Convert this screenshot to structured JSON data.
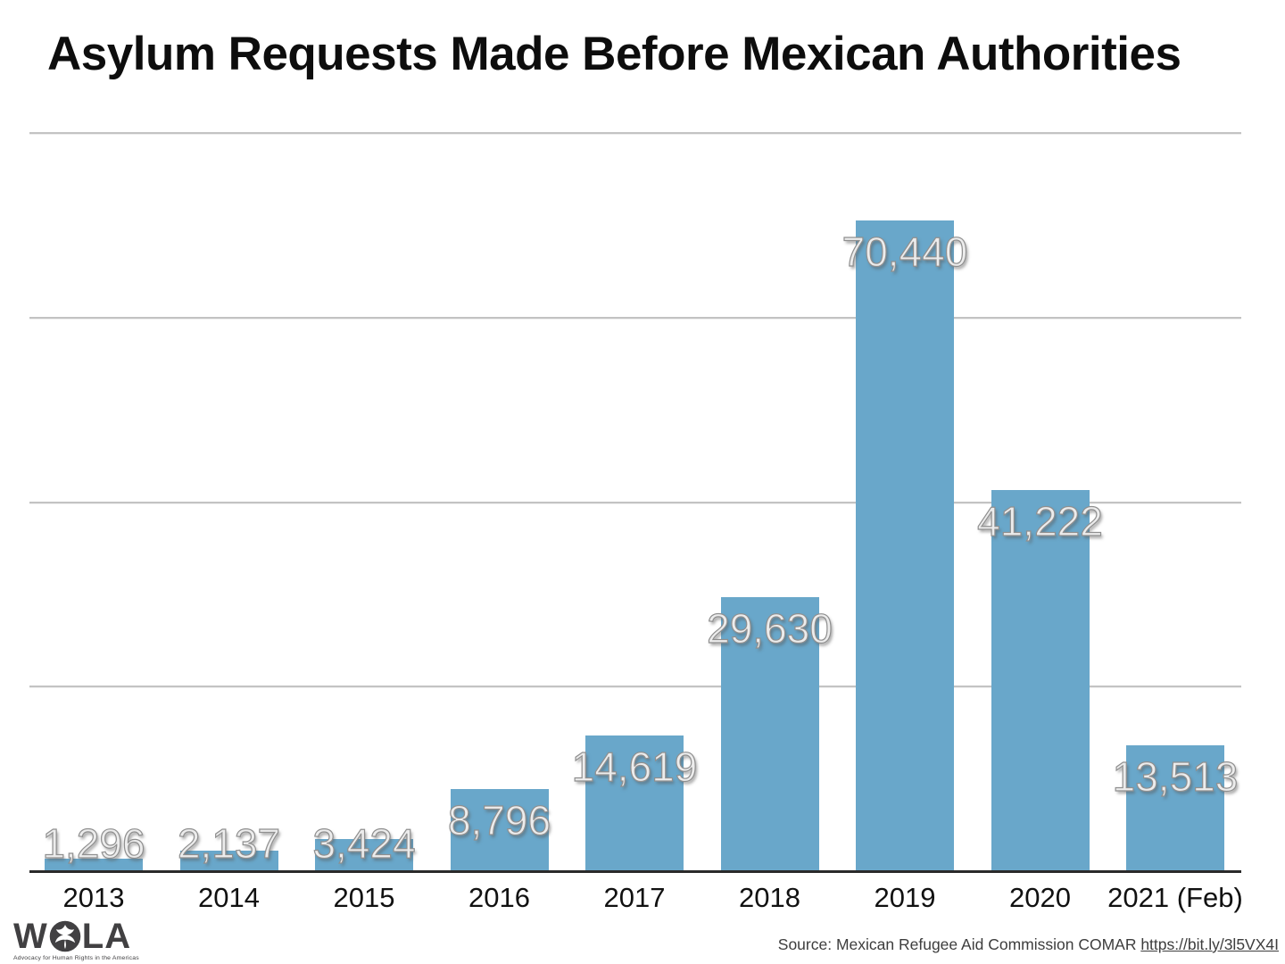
{
  "title": "Asylum Requests Made Before Mexican Authorities",
  "chart_data": {
    "type": "bar",
    "title": "Asylum Requests Made Before Mexican Authorities",
    "categories": [
      "2013",
      "2014",
      "2015",
      "2016",
      "2017",
      "2018",
      "2019",
      "2020",
      "2021 (Feb)"
    ],
    "values": [
      1296,
      2137,
      3424,
      8796,
      14619,
      29630,
      70440,
      41222,
      13513
    ],
    "value_labels": [
      "1,296",
      "2,137",
      "3,424",
      "8,796",
      "14,619",
      "29,630",
      "70,440",
      "41,222",
      "13,513"
    ],
    "xlabel": "",
    "ylabel": "",
    "ylim": [
      0,
      80000
    ],
    "gridline_values": [
      20000,
      40000,
      60000,
      80000
    ],
    "grid": true,
    "legend": false,
    "bar_color": "#69a7ca"
  },
  "footer": {
    "source_prefix": "Source: Mexican Refugee Aid Commission COMAR ",
    "source_link": "https://bit.ly/3l5VX4I",
    "logo": {
      "letters_before": "W",
      "letters_after": "LA",
      "tagline": "Advocacy for Human Rights in the Americas"
    }
  }
}
